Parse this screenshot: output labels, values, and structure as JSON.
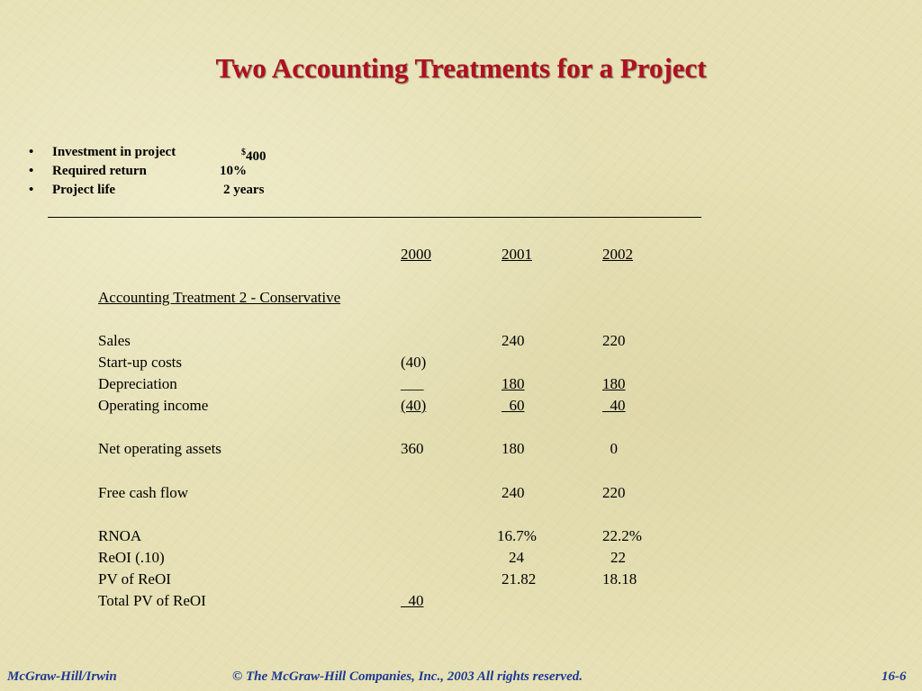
{
  "slide": {
    "title": "Two Accounting Treatments for a Project"
  },
  "bullets": [
    {
      "label": "Investment in project",
      "value_prefix": "$",
      "value": "400"
    },
    {
      "label": "Required return",
      "value": "10%"
    },
    {
      "label": "Project life",
      "value": "2 years"
    }
  ],
  "table": {
    "years": [
      "2000",
      "2001",
      "2002"
    ],
    "section_heading": "Accounting Treatment 2 - Conservative",
    "rows": {
      "sales": {
        "label": "Sales",
        "y2000": "",
        "y2001": "240",
        "y2002": "220"
      },
      "startup": {
        "label": "Start-up costs",
        "y2000": "(40)",
        "y2001": "",
        "y2002": ""
      },
      "depreciation": {
        "label": "Depreciation",
        "y2000": "___",
        "y2001": "180",
        "y2002": "180"
      },
      "operating_income": {
        "label": "Operating income",
        "y2000": "(40)",
        "y2001": "  60",
        "y2002": "  40"
      },
      "net_operating_assets": {
        "label": "Net operating assets",
        "y2000": "360",
        "y2001": "180",
        "y2002": "  0"
      },
      "free_cash_flow": {
        "label": "Free cash flow",
        "y2000": "",
        "y2001": "240",
        "y2002": "220"
      },
      "rnoa": {
        "label": "RNOA",
        "y2000": "",
        "y2001": "16.7%",
        "y2002": "22.2%"
      },
      "reoi": {
        "label": "ReOI (.10)",
        "y2000": "",
        "y2001": "24",
        "y2002": "22"
      },
      "pv_reoi": {
        "label": "PV of ReOI",
        "y2000": "",
        "y2001": "21.82",
        "y2002": "18.18"
      },
      "total_pv_reoi": {
        "label": "Total PV of ReOI",
        "y2000": "  40"
      }
    }
  },
  "footer": {
    "left": "McGraw-Hill/Irwin",
    "center": "© The McGraw-Hill Companies, Inc., 2003  All rights reserved.",
    "right": "16-6"
  },
  "colors": {
    "background": "#e6e0b4",
    "title": "#b01020",
    "footer": "#1f3a93"
  }
}
